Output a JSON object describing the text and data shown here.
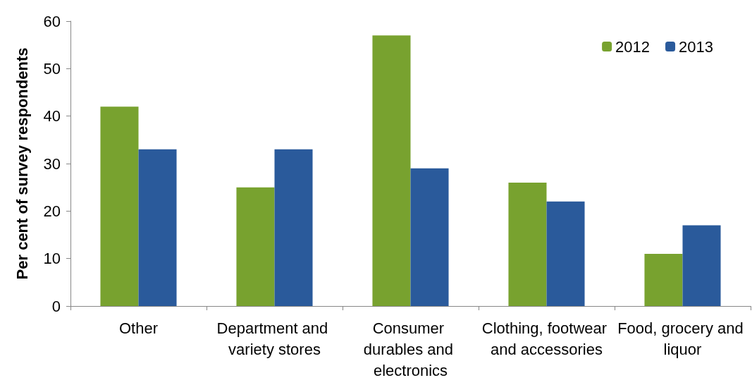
{
  "chart_data": {
    "type": "bar",
    "ylabel": "Per cent of survey respondents",
    "categories": [
      "Other",
      "Department and variety stores",
      "Consumer durables and electronics",
      "Clothing, footwear and accessories",
      "Food, grocery and liquor"
    ],
    "series": [
      {
        "name": "2012",
        "color": "#78a22f",
        "values": [
          42,
          25,
          57,
          26,
          11
        ]
      },
      {
        "name": "2013",
        "color": "#2a5a9b",
        "values": [
          33,
          33,
          29,
          22,
          17
        ]
      }
    ],
    "ylim": [
      0,
      60
    ],
    "yticks": [
      0,
      10,
      20,
      30,
      40,
      50,
      60
    ],
    "grid": false,
    "legend": "top right"
  }
}
